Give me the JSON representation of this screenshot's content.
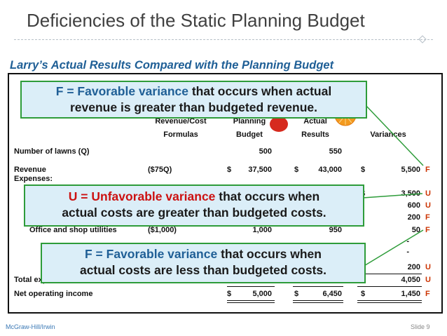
{
  "slide": {
    "title": "Deficiencies of the Static Planning Budget",
    "subtitle": "Larry’s Actual Results Compared with the Planning Budget",
    "footer_left": "McGraw-Hill/Irwin",
    "footer_right": "Slide 9"
  },
  "table": {
    "headers": {
      "formulas_line1": "Revenue/Cost",
      "formulas_line2": "Formulas",
      "planning_line1": "Planning",
      "planning_line2": "Budget",
      "actual_line1": "Actual",
      "actual_line2": "Results",
      "variances": "Variances"
    },
    "lawns": {
      "label": "Number of lawns (Q)",
      "planning": "500",
      "actual": "550"
    },
    "revenue": {
      "label": "Revenue",
      "formula": "($75Q)",
      "planning_cur": "$",
      "planning": "37,500",
      "actual_cur": "$",
      "actual": "43,000",
      "variance_cur": "$",
      "variance": "5,500",
      "flag": "F"
    },
    "expenses_label": "Expenses:",
    "expense_variances": [
      {
        "cur": "$",
        "value": "3,500",
        "flag": "U"
      },
      {
        "cur": "",
        "value": "600",
        "flag": "U"
      },
      {
        "cur": "",
        "value": "200",
        "flag": "F"
      }
    ],
    "office": {
      "label": "Office and shop utilities",
      "formula": "($1,000)",
      "planning": "1,000",
      "actual": "950",
      "variance": "50",
      "flag": "F"
    },
    "dash_rows": [
      "-",
      "-"
    ],
    "last_expense_variance": {
      "value": "200",
      "flag": "U"
    },
    "total": {
      "label": "Total expenses",
      "variance": "4,050",
      "flag": "U"
    },
    "net": {
      "label": "Net operating income",
      "planning_cur": "$",
      "planning": "5,000",
      "actual_cur": "$",
      "actual": "6,450",
      "variance_cur": "$",
      "variance": "1,450",
      "flag": "F"
    }
  },
  "callouts": {
    "favorable_revenue": {
      "keyword": "F = Favorable variance",
      "line1_rest": " that occurs when actual",
      "line2": "revenue is greater than budgeted revenue."
    },
    "unfavorable": {
      "keyword": "U = Unfavorable variance",
      "line1_rest": " that occurs when",
      "line2": "actual costs are greater than budgeted costs."
    },
    "favorable_cost": {
      "keyword": "F = Favorable variance",
      "line1_rest": " that occurs when",
      "line2": "actual costs are less than budgeted costs."
    }
  },
  "colors": {
    "callout_border": "#2e9c3a",
    "callout_fill": "#dbeef8",
    "keyword_blue": "#1f5f96",
    "keyword_red": "#cc1111",
    "flag": "#cc3300"
  }
}
